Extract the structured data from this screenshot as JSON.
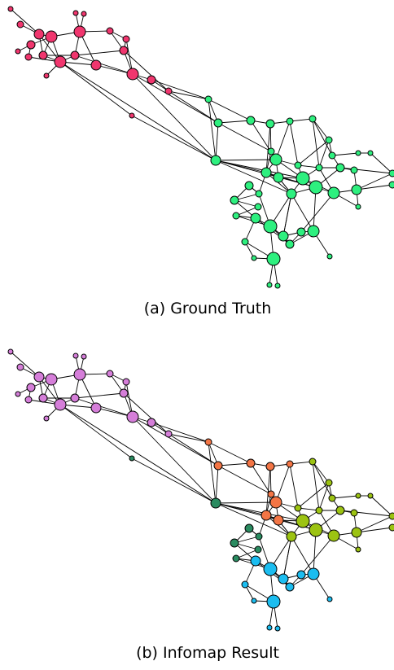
{
  "panels": [
    {
      "key": "a",
      "caption": "(a) Ground Truth"
    },
    {
      "key": "b",
      "caption": "(b) Infomap Result"
    }
  ],
  "colors": {
    "ground_truth": {
      "pink": "#f0366e",
      "green": "#2ef07f"
    },
    "infomap": {
      "violet": "#d57ed9",
      "orange": "#f37545",
      "olive": "#9cc312",
      "teal": "#2a8b60",
      "cyan": "#1bbdf0"
    }
  }
}
